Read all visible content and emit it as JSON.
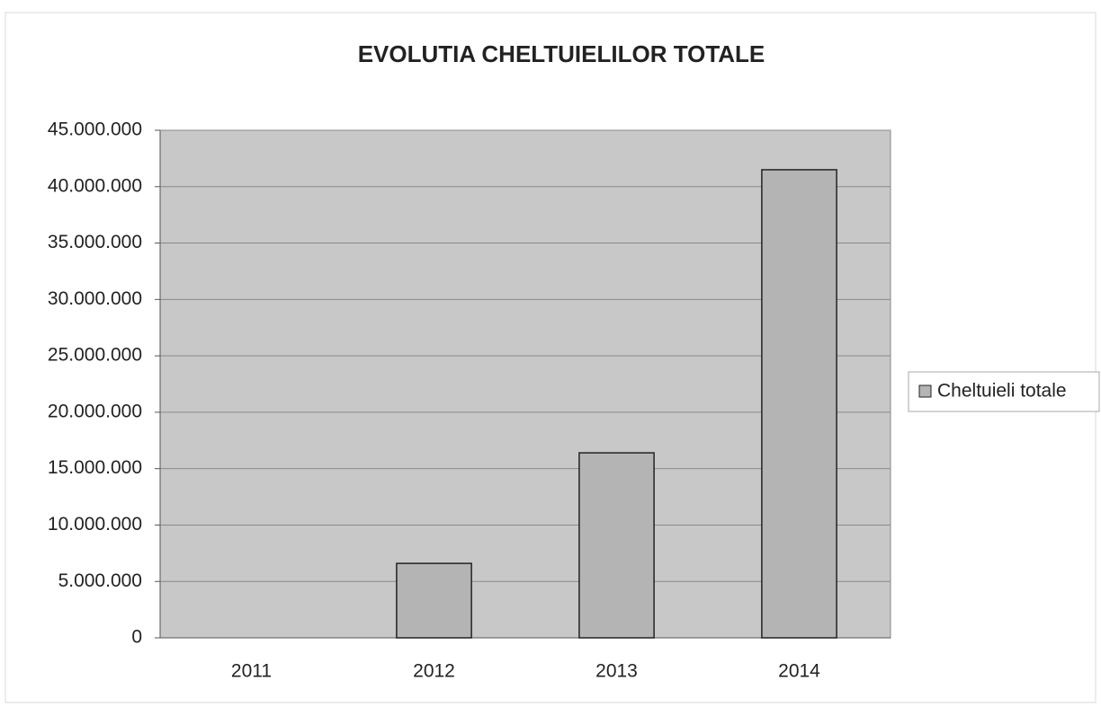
{
  "chart_data": {
    "type": "bar",
    "title": "EVOLUTIA CHELTUIELILOR TOTALE",
    "categories": [
      "2011",
      "2012",
      "2013",
      "2014"
    ],
    "series": [
      {
        "name": "Cheltuieli totale",
        "color": "#b4b4b4",
        "values": [
          0,
          6600000,
          16400000,
          41500000
        ]
      }
    ],
    "ylim": [
      0,
      45000000
    ],
    "yticks": [
      0,
      {
        "value": 5000000,
        "label": "5.000.000"
      },
      {
        "value": 10000000,
        "label": "10.000.000"
      },
      {
        "value": 15000000,
        "label": "15.000.000"
      },
      {
        "value": 20000000,
        "label": "20.000.000"
      },
      {
        "value": 25000000,
        "label": "25.000.000"
      },
      {
        "value": 30000000,
        "label": "30.000.000"
      },
      {
        "value": 35000000,
        "label": "35.000.000"
      },
      {
        "value": 40000000,
        "label": "40.000.000"
      },
      {
        "value": 45000000,
        "label": "45.000.000"
      }
    ],
    "grid": true,
    "legend": "right"
  }
}
